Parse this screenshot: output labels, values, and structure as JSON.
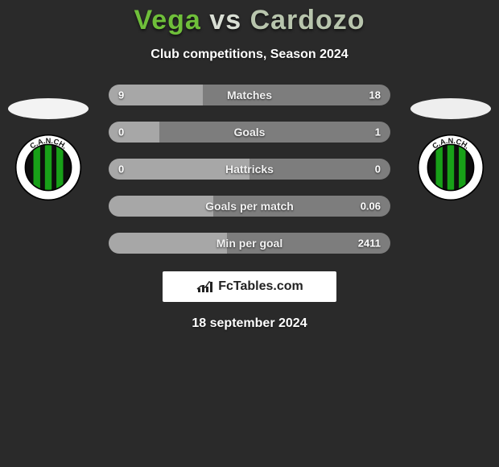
{
  "title": {
    "player1": "Vega",
    "vs": "vs",
    "player2": "Cardozo",
    "player1_color": "#6fbf3a",
    "vs_color": "#d9ded4",
    "player2_color": "#b8c5ad"
  },
  "subtitle": "Club competitions, Season 2024",
  "date": "18 september 2024",
  "bar_colors": {
    "left": "#a7a7a7",
    "right": "#7d7d7d"
  },
  "stats": [
    {
      "label": "Matches",
      "left_val": "9",
      "right_val": "18",
      "left_pct": 33.3,
      "right_pct": 66.7
    },
    {
      "label": "Goals",
      "left_val": "0",
      "right_val": "1",
      "left_pct": 18.0,
      "right_pct": 82.0
    },
    {
      "label": "Hattricks",
      "left_val": "0",
      "right_val": "0",
      "left_pct": 50.0,
      "right_pct": 50.0
    },
    {
      "label": "Goals per match",
      "left_val": "",
      "right_val": "0.06",
      "left_pct": 37.0,
      "right_pct": 63.0
    },
    {
      "label": "Min per goal",
      "left_val": "",
      "right_val": "2411",
      "left_pct": 42.0,
      "right_pct": 58.0
    }
  ],
  "badges": {
    "left_oval_color": "#f3f3f3",
    "right_oval_color": "#eeeeee",
    "club": {
      "abbr": "C.A.N.CH.",
      "ring_color": "#ffffff",
      "stripe_green": "#18a018",
      "stripe_black": "#0d0d0d",
      "text_color": "#111111"
    }
  },
  "branding": {
    "label": "FcTables.com",
    "icon_bars": [
      5,
      9,
      7,
      13
    ]
  }
}
